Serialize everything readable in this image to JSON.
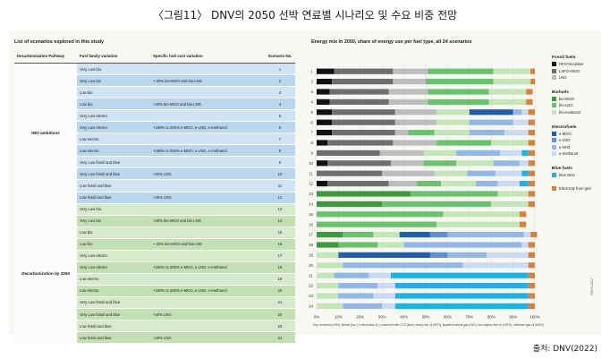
{
  "page": {
    "title": "〈그림11〉 DNV의 2050 선박 연료별 시나리오 및 수요 비중 전망",
    "source": "출처: DNV(2022)",
    "copyright": "©DNV 2022",
    "note": "Key: Ammonia (NH3); biofuel (bio-); e-electrofuel (e-); fossil fuel with CCS (blue); heavy fuel oil (HFO); liquefied natural gas (LNG); low sulphur fuel oil (LSFO); methanol gas oil (MGO)"
  },
  "table": {
    "title": "List of scenarios explored in this study",
    "headers": [
      "Decarbonization Pathway",
      "Fuel family variation",
      "Specific fuel cost variation",
      "Scenario No."
    ],
    "groups": [
      {
        "label": "IMO ambitions",
        "color": "#cfe3f2",
        "alt": "#bad6ec"
      },
      {
        "label": "Decarbonization by 2050",
        "color": "#d6eacb",
        "alt": "#c3dfb4"
      }
    ],
    "rows": [
      {
        "fuel": "Very Low bio",
        "cost": "",
        "no": "1"
      },
      {
        "fuel": "Very Low bio",
        "cost": "+ 20% bio-MGO and bio-LNG",
        "no": "2"
      },
      {
        "fuel": "Low bio",
        "cost": "",
        "no": "3"
      },
      {
        "fuel": "Low bio",
        "cost": "+20% bio-MGO and bio-LNG",
        "no": "4"
      },
      {
        "fuel": "Very Low electro",
        "cost": "",
        "no": "5"
      },
      {
        "fuel": "Very Low electro",
        "cost": "+150% to 200% e-MGO, e-LNG, e-methanol",
        "no": "6"
      },
      {
        "fuel": "Low electro",
        "cost": "",
        "no": "7"
      },
      {
        "fuel": "Low electro",
        "cost": "+150% to 200% e-MGO, e-LNG, e-methanol",
        "no": "8"
      },
      {
        "fuel": "Very Low fossil and blue",
        "cost": "",
        "no": "9"
      },
      {
        "fuel": "Very Low fossil and blue",
        "cost": "+20% LNG",
        "no": "10"
      },
      {
        "fuel": "Low fossil and blue",
        "cost": "",
        "no": "11"
      },
      {
        "fuel": "Low fossil and blue",
        "cost": "+20% LNG",
        "no": "12"
      },
      {
        "fuel": "Very Low bio",
        "cost": "",
        "no": "13"
      },
      {
        "fuel": "Very Low bio",
        "cost": "+20% bio-MGO and bio-LNG",
        "no": "14"
      },
      {
        "fuel": "Low bio",
        "cost": "",
        "no": "15"
      },
      {
        "fuel": "Low bio",
        "cost": "+ 20% bio-MGO and bio-LNG",
        "no": "16"
      },
      {
        "fuel": "Very Low electro",
        "cost": "",
        "no": "17"
      },
      {
        "fuel": "Very Low electro",
        "cost": "+150% to 200% e-MGO, e-LNG, e-methanol",
        "no": "18"
      },
      {
        "fuel": "Low electro",
        "cost": "",
        "no": "19"
      },
      {
        "fuel": "Low electro",
        "cost": "+150% to 200% e-MGO, e-LNG, e-methanol",
        "no": "20"
      },
      {
        "fuel": "Very Low fossil and blue",
        "cost": "",
        "no": "21"
      },
      {
        "fuel": "Very Low fossil and blue",
        "cost": "+20% LNG",
        "no": "22"
      },
      {
        "fuel": "Low fossil and blue",
        "cost": "",
        "no": "23"
      },
      {
        "fuel": "Low fossil and blue",
        "cost": "+20% LNG",
        "no": "24"
      }
    ]
  },
  "legend": {
    "groups": [
      {
        "title": "Fossil fuels",
        "items": [
          {
            "label": "HFO+scrubber",
            "color": "#111111"
          },
          {
            "label": "LSFO+MGO",
            "color": "#6e6e6e"
          },
          {
            "label": "LNG",
            "color": "#bdbdbd"
          }
        ]
      },
      {
        "title": "Biofuels",
        "items": [
          {
            "label": "bio-MGO",
            "color": "#3c9a3c"
          },
          {
            "label": "bio-LNG",
            "color": "#6cc16c"
          },
          {
            "label": "bio-methanol",
            "color": "#c4e6b6"
          }
        ]
      },
      {
        "title": "Electrofuels",
        "items": [
          {
            "label": "e-MGO",
            "color": "#1f5ea8"
          },
          {
            "label": "e-LNG",
            "color": "#5b8fd0"
          },
          {
            "label": "e-NH3",
            "color": "#93b8e6"
          },
          {
            "label": "e-methanol",
            "color": "#c9dbf2"
          }
        ]
      },
      {
        "title": "Blue fuels",
        "items": [
          {
            "label": "blue NH3",
            "color": "#1fb1e6"
          }
        ]
      },
      {
        "title": "",
        "items": [
          {
            "label": "Electricity from grid",
            "color": "#d9803a"
          }
        ]
      }
    ]
  },
  "chart_data": {
    "type": "bar",
    "orientation": "horizontal",
    "stacked": true,
    "title": "Energy mix in 2050, share of energy use per fuel type, all 24 scenarios",
    "categories": [
      "1",
      "2",
      "3",
      "4",
      "5",
      "6",
      "7",
      "8",
      "9",
      "10",
      "11",
      "12",
      "13",
      "14",
      "15",
      "16",
      "17",
      "18",
      "19",
      "20",
      "21",
      "22",
      "23",
      "24"
    ],
    "xlim": [
      0,
      100
    ],
    "xticks": [
      "0%",
      "10%",
      "20%",
      "30%",
      "40%",
      "50%",
      "60%",
      "70%",
      "80%",
      "90%",
      "100%"
    ],
    "grid": true,
    "legend_position": "right",
    "series": [
      {
        "name": "HFO+scrubber",
        "color": "#111111",
        "values": [
          8,
          7,
          6,
          6,
          7,
          7,
          7,
          5,
          0,
          5,
          0,
          5,
          0,
          0,
          0,
          0,
          0,
          0,
          0,
          0,
          0,
          0,
          0,
          0
        ]
      },
      {
        "name": "LSFO+MGO",
        "color": "#6e6e6e",
        "values": [
          27,
          28,
          27,
          27,
          29,
          29,
          29,
          30,
          29,
          29,
          30,
          28,
          0,
          0,
          0,
          0,
          0,
          0,
          0,
          0,
          0,
          0,
          0,
          0
        ]
      },
      {
        "name": "LNG",
        "color": "#bdbdbd",
        "values": [
          16,
          15,
          18,
          18,
          19,
          19,
          6,
          20,
          20,
          15,
          24,
          13,
          0,
          0,
          0,
          0,
          0,
          0,
          0,
          0,
          0,
          0,
          0,
          0
        ]
      },
      {
        "name": "bio-MGO",
        "color": "#3c9a3c",
        "values": [
          0,
          0,
          0,
          0,
          0,
          0,
          0,
          0,
          0,
          0,
          0,
          0,
          43,
          30,
          0,
          0,
          12,
          10,
          0,
          0,
          0,
          0,
          0,
          0
        ]
      },
      {
        "name": "bio-LNG",
        "color": "#6cc16c",
        "values": [
          30,
          31,
          28,
          28,
          0,
          0,
          12,
          25,
          0,
          15,
          0,
          11,
          40,
          50,
          58,
          55,
          14,
          18,
          0,
          0,
          0,
          0,
          0,
          0
        ]
      },
      {
        "name": "bio-methanol",
        "color": "#c4e6b6",
        "values": [
          17,
          17,
          17,
          17,
          15,
          15,
          16,
          17,
          15,
          17,
          15,
          16,
          14,
          17,
          35,
          38,
          12,
          12,
          10,
          12,
          8,
          10,
          10,
          12
        ]
      },
      {
        "name": "e-MGO",
        "color": "#1f5ea8",
        "values": [
          0,
          0,
          0,
          0,
          20,
          0,
          0,
          0,
          0,
          0,
          0,
          0,
          0,
          0,
          0,
          0,
          14,
          0,
          42,
          0,
          0,
          0,
          0,
          0
        ]
      },
      {
        "name": "e-LNG",
        "color": "#5b8fd0",
        "values": [
          0,
          0,
          0,
          0,
          0,
          0,
          0,
          0,
          0,
          0,
          0,
          0,
          0,
          0,
          0,
          0,
          8,
          0,
          8,
          0,
          0,
          0,
          0,
          0
        ]
      },
      {
        "name": "e-NH3",
        "color": "#93b8e6",
        "values": [
          0,
          0,
          0,
          0,
          4,
          20,
          16,
          0,
          20,
          12,
          13,
          10,
          0,
          0,
          0,
          0,
          35,
          54,
          18,
          55,
          16,
          18,
          16,
          18
        ]
      },
      {
        "name": "e-methanol",
        "color": "#c9dbf2",
        "values": [
          0,
          0,
          0,
          0,
          3,
          7,
          11,
          0,
          10,
          4,
          12,
          10,
          0,
          0,
          0,
          0,
          3,
          3,
          19,
          30,
          10,
          8,
          10,
          6
        ]
      },
      {
        "name": "blue NH3",
        "color": "#1fb1e6",
        "values": [
          0,
          0,
          0,
          0,
          0,
          0,
          0,
          0,
          3,
          0,
          3,
          4,
          0,
          0,
          0,
          0,
          0,
          0,
          0,
          0,
          63,
          61,
          61,
          61
        ]
      },
      {
        "name": "Electricity from grid",
        "color": "#d9803a",
        "values": [
          2,
          2,
          3,
          3,
          3,
          3,
          3,
          3,
          3,
          3,
          3,
          3,
          3,
          3,
          3,
          3,
          3,
          3,
          3,
          3,
          3,
          3,
          3,
          3
        ]
      }
    ]
  }
}
